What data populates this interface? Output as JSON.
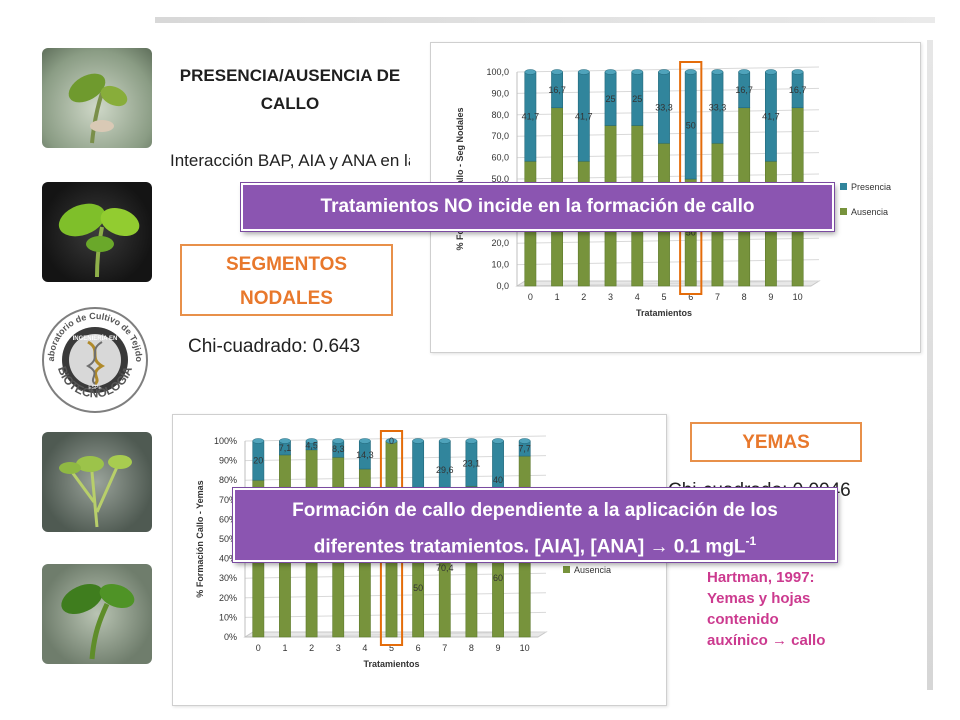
{
  "slide": {
    "title": "PRESENCIA/AUSENCIA DE CALLO",
    "subtitle": "Interacción BAP, AIA y ANA en la iniciación",
    "nodal_label": "SEGMENTOS NODALES",
    "nodal_chi": "Chi-cuadrado: 0.643",
    "yemas_label": "YEMAS",
    "yemas_chi": "Chi-cuadrado: 0.0046",
    "callout_top": "Tratamientos NO incide en la formación de callo",
    "callout_bottom_line1": "Formación de callo dependiente a la aplicación de los",
    "callout_bottom_line2": "diferentes tratamientos. [AIA], [ANA] → 0.1 mgL",
    "callout_bottom_sup": "-1",
    "ref_line1": "Hartman, 1997:",
    "ref_line2": "Yemas y hojas",
    "ref_line3": "contenido",
    "ref_line4": "auxínico → callo",
    "logo_text_top": "Laboratorio de Cultivo de Tejidos",
    "logo_text_mid": "INGENIERÍA EN",
    "logo_text_bottom": "BIOTECNOLOGÍA",
    "logo_text_small": "ESPE"
  },
  "colors": {
    "presencia": "#31859c",
    "ausencia": "#77933c",
    "highlight": "#e46c0a",
    "callout": "#8b55b1",
    "accent_text": "#e8782c"
  },
  "chart_data": [
    {
      "type": "bar",
      "stacked": true,
      "title": "",
      "xlabel": "Tratamientos",
      "ylabel": "% Formación Callo - Seg Nodales",
      "categories": [
        "0",
        "1",
        "2",
        "3",
        "4",
        "5",
        "6",
        "7",
        "8",
        "9",
        "10"
      ],
      "ylim": [
        0,
        100
      ],
      "yticks": [
        "0,0",
        "10,0",
        "20,0",
        "30,0",
        "40,0",
        "50,0",
        "60,0",
        "70,0",
        "80,0",
        "90,0",
        "100,0"
      ],
      "series": [
        {
          "name": "Ausencia",
          "values": [
            58.3,
            83.3,
            58.3,
            75,
            75,
            66.7,
            50,
            66.7,
            83.3,
            58.3,
            83.3
          ]
        },
        {
          "name": "Presencia",
          "values": [
            41.7,
            16.7,
            41.7,
            25,
            25,
            33.3,
            50,
            33.3,
            16.7,
            41.7,
            16.7
          ]
        }
      ],
      "presence_labels": [
        "41,7",
        "16,7",
        "41,7",
        "25",
        "25",
        "33,3",
        "50",
        "33,3",
        "16,7",
        "41,7",
        "16,7"
      ],
      "absence_labels": [
        "",
        "",
        "",
        "",
        "",
        "",
        "50",
        "",
        "",
        "",
        ""
      ],
      "highlight_category": "6",
      "legend": "right"
    },
    {
      "type": "bar",
      "stacked": true,
      "title": "",
      "xlabel": "Tratamientos",
      "ylabel": "% Formación Callo - Yemas",
      "categories": [
        "0",
        "1",
        "2",
        "3",
        "4",
        "5",
        "6",
        "7",
        "8",
        "9",
        "10"
      ],
      "ylim": [
        0,
        100
      ],
      "yticks": [
        "0%",
        "10%",
        "20%",
        "30%",
        "40%",
        "50%",
        "60%",
        "70%",
        "80%",
        "90%",
        "100%"
      ],
      "series": [
        {
          "name": "Ausencia",
          "values": [
            80,
            92.9,
            95.5,
            91.7,
            85.7,
            100,
            50,
            70.4,
            76.9,
            60,
            92.3
          ]
        },
        {
          "name": "Presencia",
          "values": [
            20,
            7.1,
            4.5,
            8.3,
            14.3,
            0,
            50,
            29.6,
            23.1,
            40,
            7.7
          ]
        }
      ],
      "presence_labels": [
        "20",
        "7,1",
        "4,5",
        "8,3",
        "14,3",
        "0",
        "",
        "29,6",
        "23,1",
        "40",
        "7,7"
      ],
      "absence_labels": [
        "",
        "",
        "",
        "",
        "",
        "",
        "50",
        "70,4",
        "",
        "60",
        ""
      ],
      "highlight_category": "5",
      "legend": "right"
    }
  ]
}
